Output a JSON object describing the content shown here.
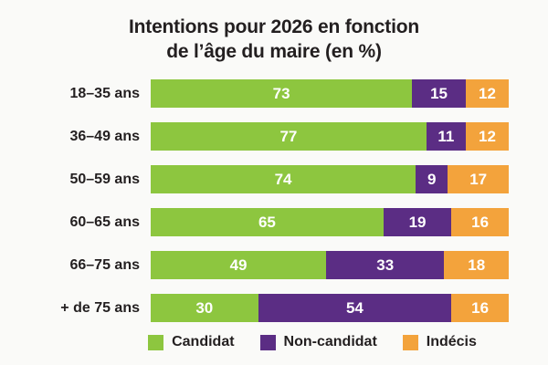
{
  "title": {
    "line1": "Intentions pour 2026 en fonction",
    "line2": "de l’âge du maire (en %)"
  },
  "colors": {
    "background": "#FAFAF8",
    "text": "#231F20",
    "value_text": "#FFFFFF",
    "candidat_green": "#8DC63F",
    "non_candidat_purple": "#5B2D84",
    "indecis_orange": "#F3A33C"
  },
  "legend": {
    "items": [
      {
        "label": "Candidat",
        "color": "#8DC63F"
      },
      {
        "label": "Non-candidat",
        "color": "#5B2D84"
      },
      {
        "label": "Indécis",
        "color": "#F3A33C"
      }
    ]
  },
  "chart_data": {
    "type": "bar",
    "orientation": "horizontal",
    "stacked": true,
    "title": "Intentions pour 2026 en fonction de l’âge du maire (en %)",
    "categories": [
      "18–35 ans",
      "36–49 ans",
      "50–59 ans",
      "60–65 ans",
      "66–75 ans",
      "+ de 75 ans"
    ],
    "series": [
      {
        "name": "Candidat",
        "color": "#8DC63F",
        "values": [
          73,
          77,
          74,
          65,
          49,
          30
        ]
      },
      {
        "name": "Non-candidat",
        "color": "#5B2D84",
        "values": [
          15,
          11,
          9,
          19,
          33,
          54
        ]
      },
      {
        "name": "Indécis",
        "color": "#F3A33C",
        "values": [
          12,
          12,
          17,
          16,
          18,
          16
        ]
      }
    ],
    "xlim": [
      0,
      100
    ],
    "value_labels": "inside",
    "legend_position": "bottom",
    "grid": false
  }
}
